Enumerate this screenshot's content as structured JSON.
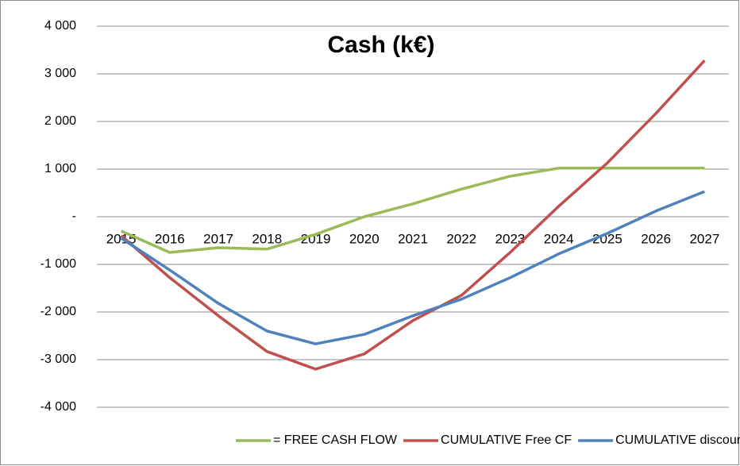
{
  "chart_data": {
    "type": "line",
    "title": "Cash  (k€)",
    "categories": [
      "2015",
      "2016",
      "2017",
      "2018",
      "2019",
      "2020",
      "2021",
      "2022",
      "2023",
      "2024",
      "2025",
      "2026",
      "2027"
    ],
    "series": [
      {
        "name": "= FREE CASH FLOW",
        "color": "#9bbb59",
        "values": [
          -300,
          -750,
          -650,
          -680,
          -370,
          0,
          270,
          580,
          850,
          1020,
          1020,
          1020,
          1020
        ]
      },
      {
        "name": "CUMULATIVE Free CF",
        "color": "#c0504d",
        "values": [
          -400,
          -1280,
          -2080,
          -2830,
          -3200,
          -2880,
          -2180,
          -1650,
          -750,
          220,
          1130,
          2170,
          3280
        ]
      },
      {
        "name": "CUMULATIVE discounted CF",
        "color": "#4f81bd",
        "values": [
          -450,
          -1120,
          -1820,
          -2400,
          -2670,
          -2470,
          -2080,
          -1730,
          -1280,
          -780,
          -350,
          120,
          530
        ]
      }
    ],
    "ylim": [
      -4000,
      4000
    ],
    "yticks": [
      {
        "value": -4000,
        "label": "-4 000"
      },
      {
        "value": -3000,
        "label": "-3 000"
      },
      {
        "value": -2000,
        "label": "-2 000"
      },
      {
        "value": -1000,
        "label": "-1 000"
      },
      {
        "value": 0,
        "label": "-"
      },
      {
        "value": 1000,
        "label": "1 000"
      },
      {
        "value": 2000,
        "label": "2 000"
      },
      {
        "value": 3000,
        "label": "3 000"
      },
      {
        "value": 4000,
        "label": "4 000"
      }
    ],
    "grid": true,
    "legend": "bottom"
  }
}
